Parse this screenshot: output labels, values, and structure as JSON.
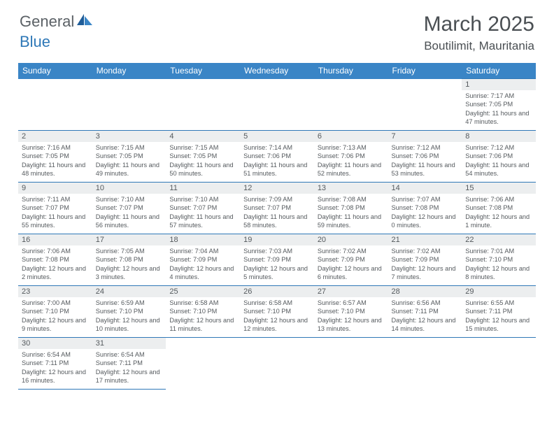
{
  "brand": {
    "general": "General",
    "blue": "Blue"
  },
  "title": "March 2025",
  "location": "Boutilimit, Mauritania",
  "weekdays": [
    "Sunday",
    "Monday",
    "Tuesday",
    "Wednesday",
    "Thursday",
    "Friday",
    "Saturday"
  ],
  "colors": {
    "header_bg": "#3a85c6",
    "rule": "#2f78b7",
    "daynum_bg": "#eceeef",
    "text": "#555a5e"
  },
  "first_weekday_index": 6,
  "days": [
    {
      "n": 1,
      "sunrise": "7:17 AM",
      "sunset": "7:05 PM",
      "daylight": "11 hours and 47 minutes."
    },
    {
      "n": 2,
      "sunrise": "7:16 AM",
      "sunset": "7:05 PM",
      "daylight": "11 hours and 48 minutes."
    },
    {
      "n": 3,
      "sunrise": "7:15 AM",
      "sunset": "7:05 PM",
      "daylight": "11 hours and 49 minutes."
    },
    {
      "n": 4,
      "sunrise": "7:15 AM",
      "sunset": "7:05 PM",
      "daylight": "11 hours and 50 minutes."
    },
    {
      "n": 5,
      "sunrise": "7:14 AM",
      "sunset": "7:06 PM",
      "daylight": "11 hours and 51 minutes."
    },
    {
      "n": 6,
      "sunrise": "7:13 AM",
      "sunset": "7:06 PM",
      "daylight": "11 hours and 52 minutes."
    },
    {
      "n": 7,
      "sunrise": "7:12 AM",
      "sunset": "7:06 PM",
      "daylight": "11 hours and 53 minutes."
    },
    {
      "n": 8,
      "sunrise": "7:12 AM",
      "sunset": "7:06 PM",
      "daylight": "11 hours and 54 minutes."
    },
    {
      "n": 9,
      "sunrise": "7:11 AM",
      "sunset": "7:07 PM",
      "daylight": "11 hours and 55 minutes."
    },
    {
      "n": 10,
      "sunrise": "7:10 AM",
      "sunset": "7:07 PM",
      "daylight": "11 hours and 56 minutes."
    },
    {
      "n": 11,
      "sunrise": "7:10 AM",
      "sunset": "7:07 PM",
      "daylight": "11 hours and 57 minutes."
    },
    {
      "n": 12,
      "sunrise": "7:09 AM",
      "sunset": "7:07 PM",
      "daylight": "11 hours and 58 minutes."
    },
    {
      "n": 13,
      "sunrise": "7:08 AM",
      "sunset": "7:08 PM",
      "daylight": "11 hours and 59 minutes."
    },
    {
      "n": 14,
      "sunrise": "7:07 AM",
      "sunset": "7:08 PM",
      "daylight": "12 hours and 0 minutes."
    },
    {
      "n": 15,
      "sunrise": "7:06 AM",
      "sunset": "7:08 PM",
      "daylight": "12 hours and 1 minute."
    },
    {
      "n": 16,
      "sunrise": "7:06 AM",
      "sunset": "7:08 PM",
      "daylight": "12 hours and 2 minutes."
    },
    {
      "n": 17,
      "sunrise": "7:05 AM",
      "sunset": "7:08 PM",
      "daylight": "12 hours and 3 minutes."
    },
    {
      "n": 18,
      "sunrise": "7:04 AM",
      "sunset": "7:09 PM",
      "daylight": "12 hours and 4 minutes."
    },
    {
      "n": 19,
      "sunrise": "7:03 AM",
      "sunset": "7:09 PM",
      "daylight": "12 hours and 5 minutes."
    },
    {
      "n": 20,
      "sunrise": "7:02 AM",
      "sunset": "7:09 PM",
      "daylight": "12 hours and 6 minutes."
    },
    {
      "n": 21,
      "sunrise": "7:02 AM",
      "sunset": "7:09 PM",
      "daylight": "12 hours and 7 minutes."
    },
    {
      "n": 22,
      "sunrise": "7:01 AM",
      "sunset": "7:10 PM",
      "daylight": "12 hours and 8 minutes."
    },
    {
      "n": 23,
      "sunrise": "7:00 AM",
      "sunset": "7:10 PM",
      "daylight": "12 hours and 9 minutes."
    },
    {
      "n": 24,
      "sunrise": "6:59 AM",
      "sunset": "7:10 PM",
      "daylight": "12 hours and 10 minutes."
    },
    {
      "n": 25,
      "sunrise": "6:58 AM",
      "sunset": "7:10 PM",
      "daylight": "12 hours and 11 minutes."
    },
    {
      "n": 26,
      "sunrise": "6:58 AM",
      "sunset": "7:10 PM",
      "daylight": "12 hours and 12 minutes."
    },
    {
      "n": 27,
      "sunrise": "6:57 AM",
      "sunset": "7:10 PM",
      "daylight": "12 hours and 13 minutes."
    },
    {
      "n": 28,
      "sunrise": "6:56 AM",
      "sunset": "7:11 PM",
      "daylight": "12 hours and 14 minutes."
    },
    {
      "n": 29,
      "sunrise": "6:55 AM",
      "sunset": "7:11 PM",
      "daylight": "12 hours and 15 minutes."
    },
    {
      "n": 30,
      "sunrise": "6:54 AM",
      "sunset": "7:11 PM",
      "daylight": "12 hours and 16 minutes."
    },
    {
      "n": 31,
      "sunrise": "6:54 AM",
      "sunset": "7:11 PM",
      "daylight": "12 hours and 17 minutes."
    }
  ],
  "labels": {
    "sunrise": "Sunrise:",
    "sunset": "Sunset:",
    "daylight": "Daylight:"
  }
}
